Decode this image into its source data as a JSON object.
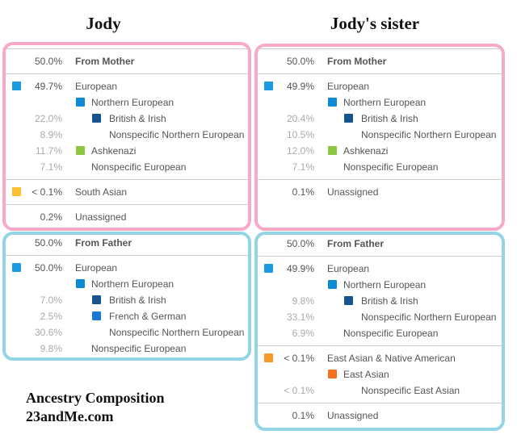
{
  "titles": {
    "left": "Jody",
    "right": "Jody's sister"
  },
  "footer": {
    "line1": "Ancestry Composition",
    "line2": "23andMe.com"
  },
  "colors": {
    "mother_border": "#f7a9c7",
    "father_border": "#93d4e7"
  },
  "panels": [
    {
      "id": "jody-mother",
      "parent": "mother",
      "sections": [
        [
          {
            "pct": "50.0%",
            "label": "From Mother",
            "level": 0,
            "header": true
          }
        ],
        [
          {
            "pct": "49.7%",
            "label": "European",
            "level": 0,
            "color": "#1c9be0"
          },
          {
            "pct": "",
            "label": "Northern European",
            "level": 1,
            "color": "#0d8ad6"
          },
          {
            "pct": "22.0%",
            "label": "British & Irish",
            "level": 2,
            "color": "#17548f",
            "light": true
          },
          {
            "pct": "8.9%",
            "label": "Nonspecific Northern European",
            "level": 2,
            "light": true
          },
          {
            "pct": "11.7%",
            "label": "Ashkenazi",
            "level": 1,
            "color": "#8dc63f",
            "light": true
          },
          {
            "pct": "7.1%",
            "label": "Nonspecific European",
            "level": 1,
            "light": true
          }
        ],
        [
          {
            "pct": "< 0.1%",
            "label": "South Asian",
            "level": 0,
            "color": "#fbc02d"
          }
        ],
        [
          {
            "pct": "0.2%",
            "label": "Unassigned",
            "level": 0
          }
        ]
      ]
    },
    {
      "id": "sister-mother",
      "parent": "mother",
      "sections": [
        [
          {
            "pct": "50.0%",
            "label": "From Mother",
            "level": 0,
            "header": true
          }
        ],
        [
          {
            "pct": "49.9%",
            "label": "European",
            "level": 0,
            "color": "#1c9be0"
          },
          {
            "pct": "",
            "label": "Northern European",
            "level": 1,
            "color": "#0d8ad6"
          },
          {
            "pct": "20.4%",
            "label": "British & Irish",
            "level": 2,
            "color": "#17548f",
            "light": true
          },
          {
            "pct": "10.5%",
            "label": "Nonspecific Northern European",
            "level": 2,
            "light": true
          },
          {
            "pct": "12.0%",
            "label": "Ashkenazi",
            "level": 1,
            "color": "#8dc63f",
            "light": true
          },
          {
            "pct": "7.1%",
            "label": "Nonspecific European",
            "level": 1,
            "light": true
          }
        ],
        [
          {
            "pct": "0.1%",
            "label": "Unassigned",
            "level": 0
          }
        ]
      ]
    },
    {
      "id": "jody-father",
      "parent": "father",
      "sections": [
        [
          {
            "pct": "50.0%",
            "label": "From Father",
            "level": 0,
            "header": true
          }
        ],
        [
          {
            "pct": "50.0%",
            "label": "European",
            "level": 0,
            "color": "#1c9be0"
          },
          {
            "pct": "",
            "label": "Northern European",
            "level": 1,
            "color": "#0d8ad6"
          },
          {
            "pct": "7.0%",
            "label": "British & Irish",
            "level": 2,
            "color": "#17548f",
            "light": true
          },
          {
            "pct": "2.5%",
            "label": "French & German",
            "level": 2,
            "color": "#1a78d4",
            "light": true
          },
          {
            "pct": "30.6%",
            "label": "Nonspecific Northern European",
            "level": 2,
            "light": true
          },
          {
            "pct": "9.8%",
            "label": "Nonspecific European",
            "level": 1,
            "light": true
          }
        ]
      ]
    },
    {
      "id": "sister-father",
      "parent": "father",
      "sections": [
        [
          {
            "pct": "50.0%",
            "label": "From Father",
            "level": 0,
            "header": true
          }
        ],
        [
          {
            "pct": "49.9%",
            "label": "European",
            "level": 0,
            "color": "#1c9be0"
          },
          {
            "pct": "",
            "label": "Northern European",
            "level": 1,
            "color": "#0d8ad6"
          },
          {
            "pct": "9.8%",
            "label": "British & Irish",
            "level": 2,
            "color": "#17548f",
            "light": true
          },
          {
            "pct": "33.1%",
            "label": "Nonspecific Northern European",
            "level": 2,
            "light": true
          },
          {
            "pct": "6.9%",
            "label": "Nonspecific European",
            "level": 1,
            "light": true
          }
        ],
        [
          {
            "pct": "< 0.1%",
            "label": "East Asian & Native American",
            "level": 0,
            "color": "#f89b2c"
          },
          {
            "pct": "",
            "label": "East Asian",
            "level": 1,
            "color": "#f2711c"
          },
          {
            "pct": "< 0.1%",
            "label": "Nonspecific East Asian",
            "level": 2,
            "light": true
          }
        ],
        [
          {
            "pct": "0.1%",
            "label": "Unassigned",
            "level": 0
          }
        ]
      ]
    }
  ]
}
